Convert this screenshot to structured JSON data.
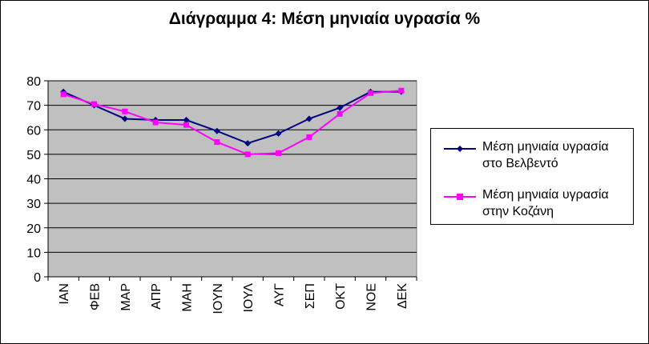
{
  "chart_data": {
    "type": "line",
    "title": "Διάγραμμα 4: Μέση μηνιαία υγρασία %",
    "xlabel": "",
    "ylabel": "",
    "categories": [
      "ΙΑΝ",
      "ΦΕΒ",
      "ΜΑΡ",
      "ΑΠΡ",
      "ΜΑΗ",
      "ΙΟΥΝ",
      "ΙΟΥΛ",
      "ΑΥΓ",
      "ΣΕΠ",
      "ΟΚΤ",
      "ΝΟΕ",
      "ΔΕΚ"
    ],
    "ylim": [
      0,
      80
    ],
    "yticks": [
      0,
      10,
      20,
      30,
      40,
      50,
      60,
      70,
      80
    ],
    "grid": true,
    "legend_position": "right",
    "plot_background": "#c0c0c0",
    "series": [
      {
        "name": "Μέση μηνιαία υγρασία στο Βελβεντό",
        "label_lines": [
          "Μέση μηνιαία υγρασία",
          "στο Βελβεντό"
        ],
        "color": "#000080",
        "marker": "diamond",
        "values": [
          75.5,
          70,
          64.5,
          64,
          64,
          59.5,
          54.5,
          58.5,
          64.5,
          69,
          75.5,
          75.5
        ]
      },
      {
        "name": "Μέση μηνιαία υγρασία στην Κοζάνη",
        "label_lines": [
          "Μέση μηνιαία υγρασία",
          "στην Κοζάνη"
        ],
        "color": "#ff00ff",
        "marker": "square",
        "values": [
          74.5,
          70.5,
          67.5,
          63,
          62,
          55,
          50,
          50.5,
          57,
          66.5,
          75,
          76
        ]
      }
    ]
  }
}
